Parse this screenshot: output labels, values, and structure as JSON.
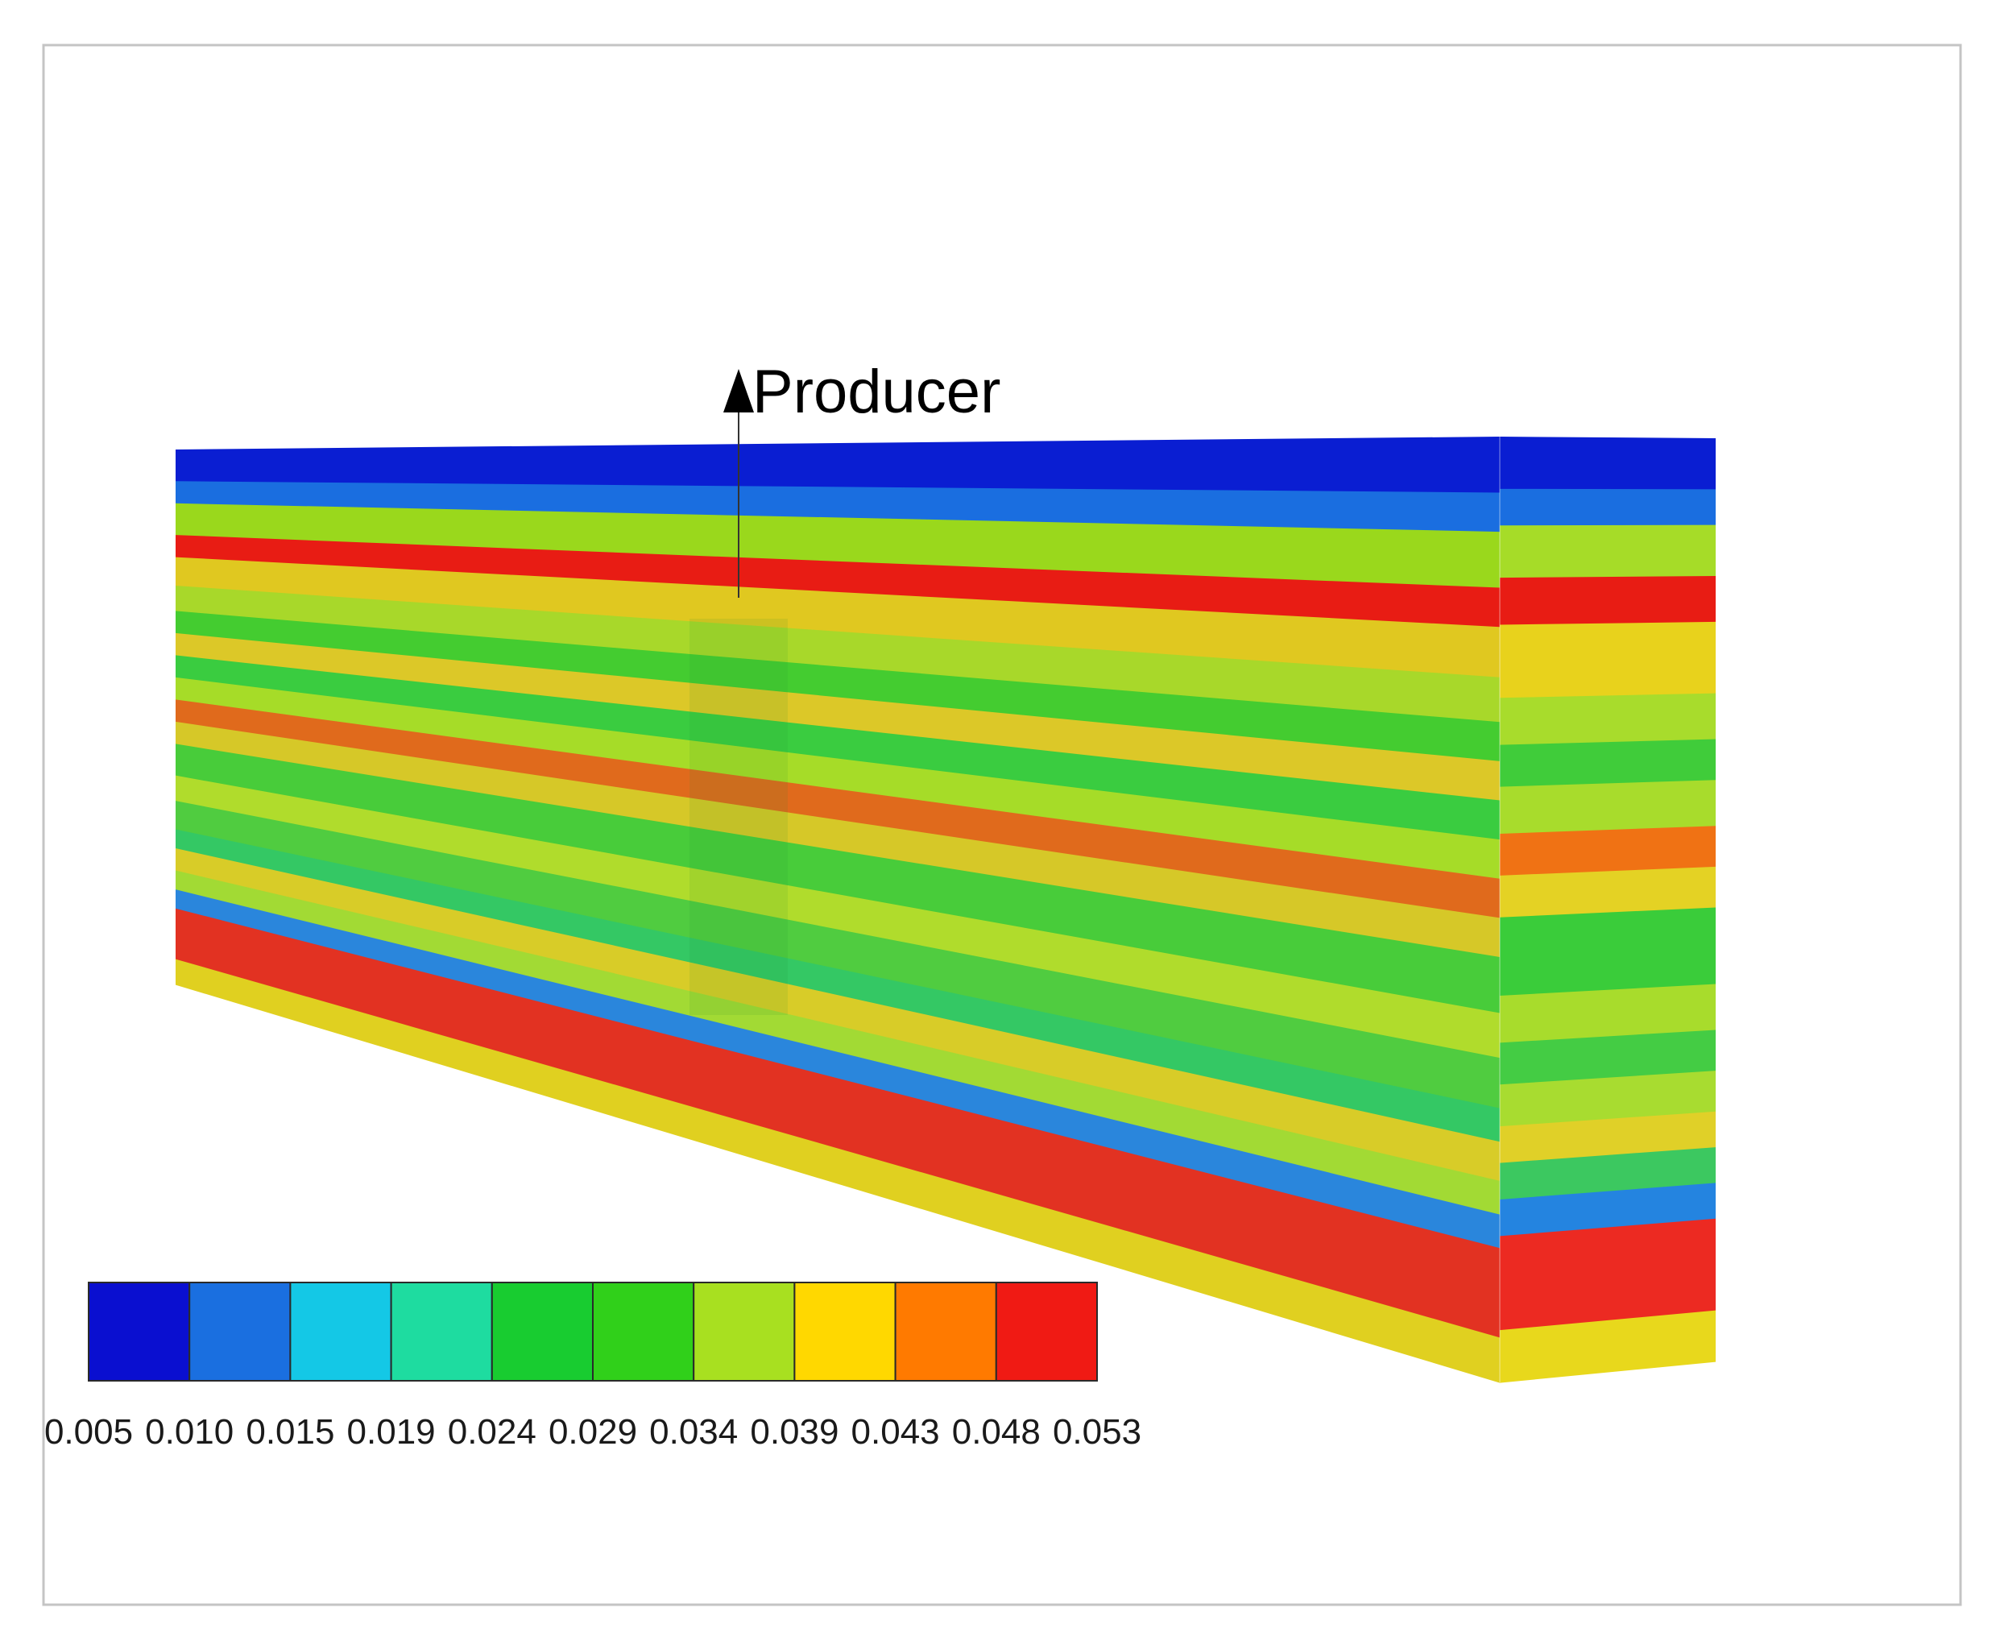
{
  "well": {
    "label": "Producer"
  },
  "legend": {
    "ticks": [
      "0.005",
      "0.010",
      "0.015",
      "0.019",
      "0.024",
      "0.029",
      "0.034",
      "0.039",
      "0.043",
      "0.048",
      "0.053"
    ],
    "colors": [
      "#0a0fd0",
      "#1a6fe0",
      "#14c8e6",
      "#1edca0",
      "#18cc30",
      "#30d01a",
      "#a8e020",
      "#ffd800",
      "#ff7a00",
      "#f01a14"
    ]
  },
  "layers": [
    {
      "color": "#0a1ed2",
      "t": 0.05
    },
    {
      "color": "#1a6ee0",
      "t": 0.035
    },
    {
      "color": "#9ad81c",
      "t": 0.05
    },
    {
      "color": "#e81c14",
      "t": 0.035
    },
    {
      "color": "#e0c820",
      "t": 0.045
    },
    {
      "color": "#a8d82a",
      "t": 0.04
    },
    {
      "color": "#44cc30",
      "t": 0.035
    },
    {
      "color": "#dcc828",
      "t": 0.035
    },
    {
      "color": "#3acc40",
      "t": 0.035
    },
    {
      "color": "#a6dc28",
      "t": 0.035
    },
    {
      "color": "#e06a1c",
      "t": 0.035
    },
    {
      "color": "#d6c828",
      "t": 0.035
    },
    {
      "color": "#48cc3a",
      "t": 0.05
    },
    {
      "color": "#b0dc2c",
      "t": 0.04
    },
    {
      "color": "#50cc40",
      "t": 0.045
    },
    {
      "color": "#34c864",
      "t": 0.03
    },
    {
      "color": "#d8cc28",
      "t": 0.035
    },
    {
      "color": "#a2da34",
      "t": 0.03
    },
    {
      "color": "#2a86dc",
      "t": 0.03
    },
    {
      "color": "#e23222",
      "t": 0.08
    },
    {
      "color": "#e0d020",
      "t": 0.04
    }
  ],
  "side_layers": [
    {
      "color": "#0a1ed2",
      "t": 0.05
    },
    {
      "color": "#1a6ee0",
      "t": 0.035
    },
    {
      "color": "#a6dc28",
      "t": 0.05
    },
    {
      "color": "#e81c14",
      "t": 0.045
    },
    {
      "color": "#e8d21c",
      "t": 0.07
    },
    {
      "color": "#a8dc2c",
      "t": 0.045
    },
    {
      "color": "#40cc3a",
      "t": 0.04
    },
    {
      "color": "#a8dc2c",
      "t": 0.045
    },
    {
      "color": "#f07214",
      "t": 0.04
    },
    {
      "color": "#e4d224",
      "t": 0.04
    },
    {
      "color": "#3acc3a",
      "t": 0.075
    },
    {
      "color": "#a8dc2c",
      "t": 0.045
    },
    {
      "color": "#44cc44",
      "t": 0.04
    },
    {
      "color": "#a8dc30",
      "t": 0.04
    },
    {
      "color": "#e0d028",
      "t": 0.035
    },
    {
      "color": "#3cc860",
      "t": 0.035
    },
    {
      "color": "#2484e0",
      "t": 0.035
    },
    {
      "color": "#ec2a22",
      "t": 0.09
    },
    {
      "color": "#e8d81c",
      "t": 0.05
    }
  ]
}
